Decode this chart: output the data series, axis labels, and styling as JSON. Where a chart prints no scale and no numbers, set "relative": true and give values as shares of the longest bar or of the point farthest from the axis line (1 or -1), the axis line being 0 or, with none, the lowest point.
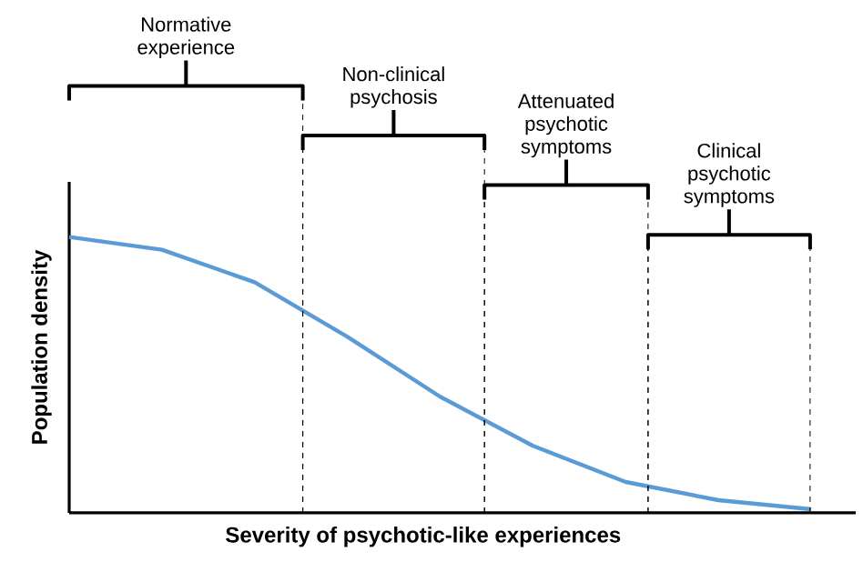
{
  "chart_data": {
    "type": "line",
    "relative": true,
    "xlabel": "Severity of psychotic-like experiences",
    "ylabel": "Population density",
    "categories": [
      null,
      null,
      null,
      null,
      null,
      null,
      null,
      null,
      null
    ],
    "series": [
      {
        "color": "#5b9bd5",
        "values": [
          1,
          0.954,
          0.836,
          0.638,
          0.421,
          0.243,
          0.112,
          0.046,
          0.013
        ]
      }
    ],
    "annotations": [
      "Normative experience",
      "Non-clinical psychosis",
      "Attenuated psychotic symptoms",
      "Clinical psychotic symptoms"
    ],
    "marker": "none",
    "line_style": "solid"
  }
}
